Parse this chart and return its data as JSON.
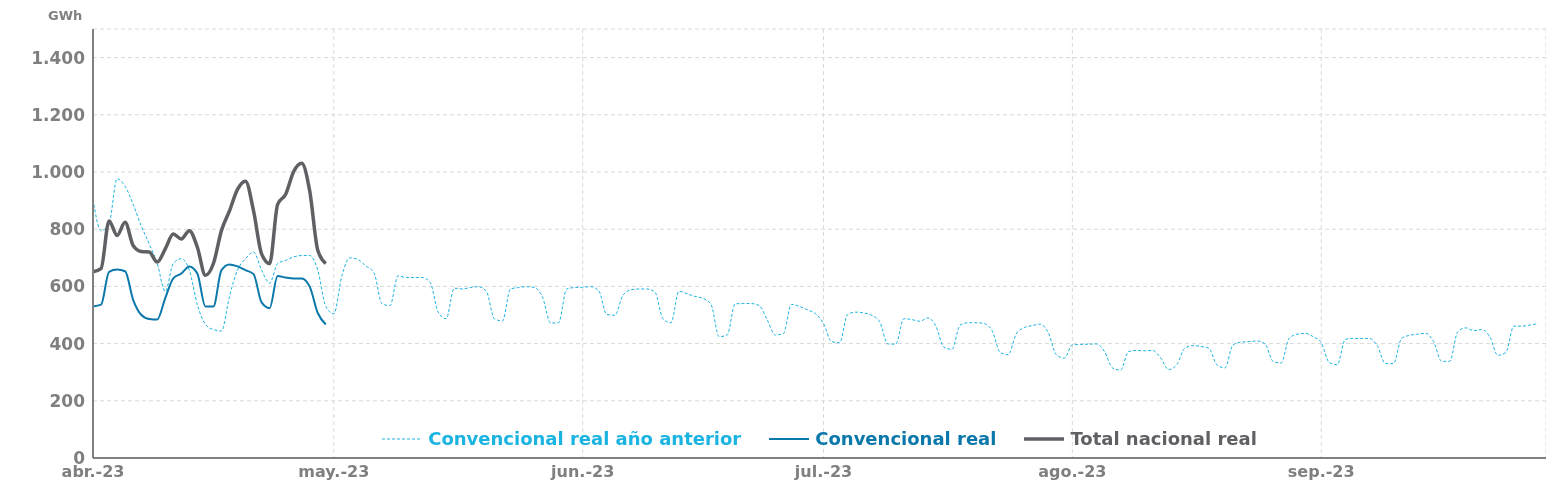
{
  "chart_data": {
    "type": "line",
    "ylabel": "GWh",
    "x": [
      "2023-04-01",
      "2023-04-02",
      "2023-04-03",
      "2023-04-04",
      "2023-04-05",
      "2023-04-06",
      "2023-04-07",
      "2023-04-08",
      "2023-04-09",
      "2023-04-10",
      "2023-04-11",
      "2023-04-12",
      "2023-04-13",
      "2023-04-14",
      "2023-04-15",
      "2023-04-16",
      "2023-04-17",
      "2023-04-18",
      "2023-04-19",
      "2023-04-20",
      "2023-04-21",
      "2023-04-22",
      "2023-04-23",
      "2023-04-24",
      "2023-04-25",
      "2023-04-26",
      "2023-04-27",
      "2023-04-28",
      "2023-04-29",
      "2023-04-30",
      "2023-05-01",
      "2023-05-02",
      "2023-05-03",
      "2023-05-04",
      "2023-05-05",
      "2023-05-06",
      "2023-05-07",
      "2023-05-08",
      "2023-05-09",
      "2023-05-10",
      "2023-05-11",
      "2023-05-12",
      "2023-05-13",
      "2023-05-14",
      "2023-05-15",
      "2023-05-16",
      "2023-05-17",
      "2023-05-18",
      "2023-05-19",
      "2023-05-20",
      "2023-05-21",
      "2023-05-22",
      "2023-05-23",
      "2023-05-24",
      "2023-05-25",
      "2023-05-26",
      "2023-05-27",
      "2023-05-28",
      "2023-05-29",
      "2023-05-30",
      "2023-05-31",
      "2023-06-01",
      "2023-06-02",
      "2023-06-03",
      "2023-06-04",
      "2023-06-05",
      "2023-06-06",
      "2023-06-07",
      "2023-06-08",
      "2023-06-09",
      "2023-06-10",
      "2023-06-11",
      "2023-06-12",
      "2023-06-13",
      "2023-06-14",
      "2023-06-15",
      "2023-06-16",
      "2023-06-17",
      "2023-06-18",
      "2023-06-19",
      "2023-06-20",
      "2023-06-21",
      "2023-06-22",
      "2023-06-23",
      "2023-06-24",
      "2023-06-25",
      "2023-06-26",
      "2023-06-27",
      "2023-06-28",
      "2023-06-29",
      "2023-06-30",
      "2023-07-01",
      "2023-07-02",
      "2023-07-03",
      "2023-07-04",
      "2023-07-05",
      "2023-07-06",
      "2023-07-07",
      "2023-07-08",
      "2023-07-09",
      "2023-07-10",
      "2023-07-11",
      "2023-07-12",
      "2023-07-13",
      "2023-07-14",
      "2023-07-15",
      "2023-07-16",
      "2023-07-17",
      "2023-07-18",
      "2023-07-19",
      "2023-07-20",
      "2023-07-21",
      "2023-07-22",
      "2023-07-23",
      "2023-07-24",
      "2023-07-25",
      "2023-07-26",
      "2023-07-27",
      "2023-07-28",
      "2023-07-29",
      "2023-07-30",
      "2023-07-31",
      "2023-08-01",
      "2023-08-02",
      "2023-08-03",
      "2023-08-04",
      "2023-08-05",
      "2023-08-06",
      "2023-08-07",
      "2023-08-08",
      "2023-08-09",
      "2023-08-10",
      "2023-08-11",
      "2023-08-12",
      "2023-08-13",
      "2023-08-14",
      "2023-08-15",
      "2023-08-16",
      "2023-08-17",
      "2023-08-18",
      "2023-08-19",
      "2023-08-20",
      "2023-08-21",
      "2023-08-22",
      "2023-08-23",
      "2023-08-24",
      "2023-08-25",
      "2023-08-26",
      "2023-08-27",
      "2023-08-28",
      "2023-08-29",
      "2023-08-30",
      "2023-08-31",
      "2023-09-01",
      "2023-09-02",
      "2023-09-03",
      "2023-09-04",
      "2023-09-05",
      "2023-09-06",
      "2023-09-07",
      "2023-09-08",
      "2023-09-09",
      "2023-09-10",
      "2023-09-11",
      "2023-09-12",
      "2023-09-13",
      "2023-09-14",
      "2023-09-15",
      "2023-09-16",
      "2023-09-17",
      "2023-09-18",
      "2023-09-19",
      "2023-09-20",
      "2023-09-21",
      "2023-09-22",
      "2023-09-23",
      "2023-09-24",
      "2023-09-25",
      "2023-09-26",
      "2023-09-27",
      "2023-09-28"
    ],
    "series": [
      {
        "name": "Convencional real año anterior",
        "color": "#1ab4e2",
        "line_style": "dashed",
        "values": [
          904,
          795,
          818,
          976,
          950,
          887,
          812,
          749,
          680,
          582,
          680,
          697,
          657,
          536,
          467,
          449,
          444,
          565,
          657,
          697,
          720,
          657,
          611,
          680,
          691,
          703,
          708,
          708,
          657,
          530,
          504,
          637,
          700,
          694,
          671,
          648,
          539,
          533,
          637,
          631,
          631,
          631,
          614,
          510,
          487,
          594,
          591,
          596,
          599,
          583,
          487,
          479,
          591,
          596,
          599,
          596,
          562,
          472,
          473,
          591,
          596,
          597,
          599,
          585,
          502,
          499,
          568,
          588,
          591,
          591,
          580,
          487,
          473,
          583,
          574,
          565,
          558,
          536,
          424,
          430,
          539,
          540,
          540,
          533,
          482,
          430,
          435,
          537,
          530,
          518,
          505,
          470,
          407,
          403,
          502,
          510,
          507,
          499,
          476,
          399,
          398,
          487,
          484,
          478,
          490,
          461,
          387,
          380,
          464,
          473,
          473,
          470,
          445,
          369,
          361,
          433,
          456,
          463,
          468,
          438,
          361,
          349,
          396,
          397,
          398,
          399,
          372,
          315,
          307,
          372,
          376,
          375,
          376,
          350,
          309,
          326,
          384,
          393,
          390,
          384,
          326,
          315,
          395,
          405,
          407,
          409,
          399,
          338,
          332,
          418,
          433,
          436,
          424,
          403,
          334,
          326,
          415,
          418,
          418,
          418,
          392,
          330,
          330,
          418,
          429,
          433,
          436,
          407,
          338,
          338,
          441,
          455,
          445,
          449,
          424,
          359,
          369,
          461,
          461,
          465,
          470
        ]
      },
      {
        "name": "Convencional real",
        "color": "#0a78aa",
        "line_style": "solid",
        "x": [
          "2023-04-01",
          "2023-04-02",
          "2023-04-03",
          "2023-04-04",
          "2023-04-05",
          "2023-04-06",
          "2023-04-07",
          "2023-04-08",
          "2023-04-09",
          "2023-04-10",
          "2023-04-11",
          "2023-04-12",
          "2023-04-13",
          "2023-04-14",
          "2023-04-15",
          "2023-04-16",
          "2023-04-17",
          "2023-04-18",
          "2023-04-19",
          "2023-04-20",
          "2023-04-21",
          "2023-04-22",
          "2023-04-23",
          "2023-04-24",
          "2023-04-25",
          "2023-04-26",
          "2023-04-27",
          "2023-04-28",
          "2023-04-29",
          "2023-04-30"
        ],
        "values": [
          530,
          536,
          651,
          659,
          653,
          553,
          501,
          486,
          484,
          559,
          628,
          645,
          670,
          645,
          530,
          530,
          657,
          677,
          670,
          657,
          643,
          544,
          524,
          636,
          631,
          628,
          628,
          599,
          507,
          467
        ]
      },
      {
        "name": "Total nacional real",
        "color": "#5f6064",
        "line_style": "solid",
        "x": [
          "2023-04-01",
          "2023-04-02",
          "2023-04-03",
          "2023-04-04",
          "2023-04-05",
          "2023-04-06",
          "2023-04-07",
          "2023-04-08",
          "2023-04-09",
          "2023-04-10",
          "2023-04-11",
          "2023-04-12",
          "2023-04-13",
          "2023-04-14",
          "2023-04-15",
          "2023-04-16",
          "2023-04-17",
          "2023-04-18",
          "2023-04-19",
          "2023-04-20",
          "2023-04-21",
          "2023-04-22",
          "2023-04-23",
          "2023-04-24",
          "2023-04-25",
          "2023-04-26",
          "2023-04-27",
          "2023-04-28",
          "2023-04-29",
          "2023-04-30"
        ],
        "values": [
          651,
          662,
          829,
          778,
          824,
          743,
          722,
          720,
          685,
          731,
          783,
          766,
          795,
          737,
          639,
          680,
          795,
          864,
          939,
          968,
          864,
          714,
          680,
          887,
          922,
          1002,
          1031,
          933,
          726,
          680
        ]
      }
    ],
    "xlim": [
      "2023-04-01",
      "2023-09-29"
    ],
    "xticks": [
      {
        "value": "2023-04-01",
        "label": "abr.-23"
      },
      {
        "value": "2023-05-01",
        "label": "may.-23"
      },
      {
        "value": "2023-06-01",
        "label": "jun.-23"
      },
      {
        "value": "2023-07-01",
        "label": "jul.-23"
      },
      {
        "value": "2023-08-01",
        "label": "ago.-23"
      },
      {
        "value": "2023-09-01",
        "label": "sep.-23"
      }
    ],
    "ylim": [
      0,
      1500
    ],
    "yticks": [
      0,
      200,
      400,
      600,
      800,
      {
        "value": 1000,
        "label": "1.000"
      },
      {
        "value": 1200,
        "label": "1.200"
      },
      {
        "value": 1400,
        "label": "1.400"
      }
    ],
    "grid": true,
    "legend": "bottom",
    "marker": "none"
  }
}
